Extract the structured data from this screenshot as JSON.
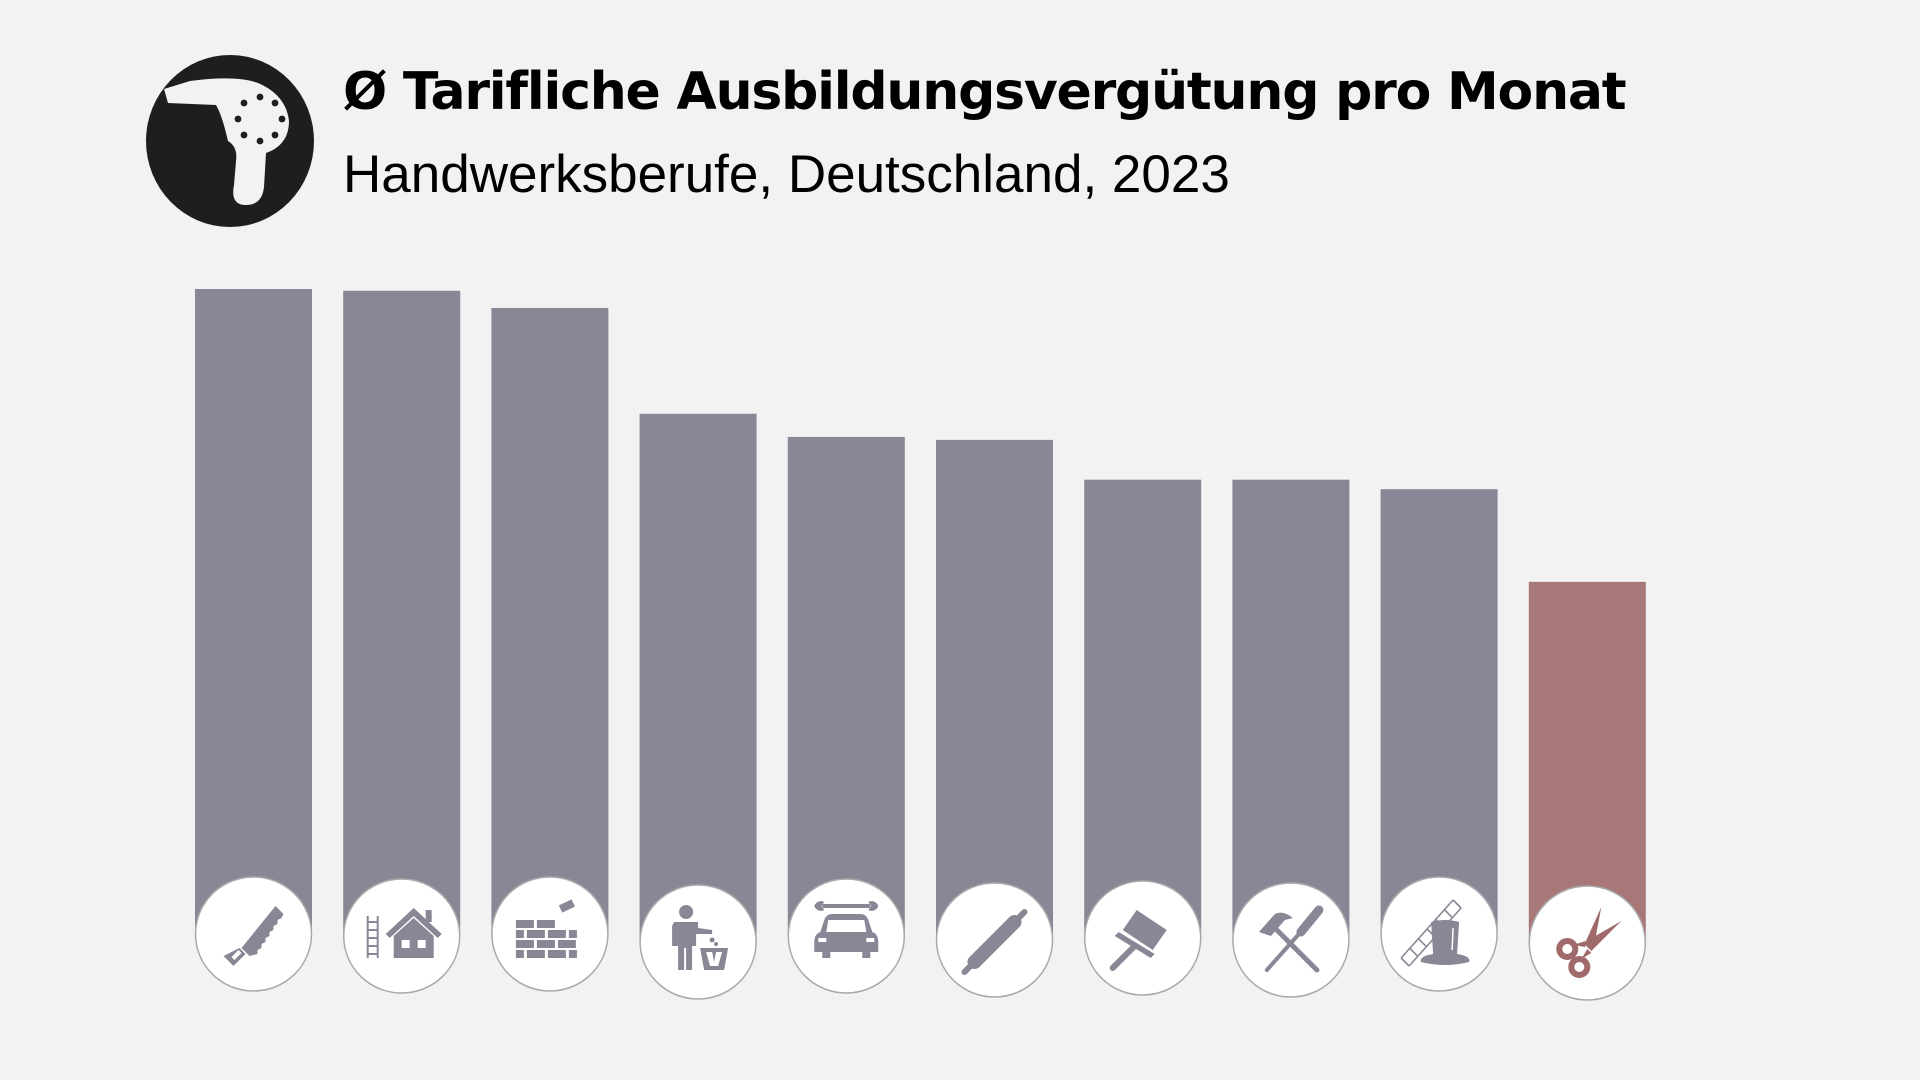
{
  "header": {
    "icon": "hair-dryer-icon",
    "title": "Ø Tarifliche Ausbildungsvergütung pro Monat",
    "subtitle": "Handwerksberufe, Deutschland, 2023"
  },
  "colors": {
    "background": "#f2f2f2",
    "bar_default": "#888796",
    "bar_highlight": "#a87878",
    "icon_default": "#888796",
    "icon_highlight": "#a06a6a",
    "header_icon": "#1e1e1e"
  },
  "chart_data": {
    "type": "bar",
    "title": "Ø Tarifliche Ausbildungsvergütung pro Monat",
    "subtitle": "Handwerksberufe, Deutschland, 2023",
    "xlabel": "",
    "ylabel": "",
    "unit": "EUR (estimated, no axis shown)",
    "ylim": [
      0,
      1200
    ],
    "grid": false,
    "legend": "none",
    "categories": [
      "saw-icon",
      "house-ladder-icon",
      "brick-wall-icon",
      "person-trash-icon",
      "car-wrench-icon",
      "rolling-pin-icon",
      "paint-brush-icon",
      "hammer-screwdriver-icon",
      "chimney-sweep-hat-ladder-icon",
      "scissors-icon"
    ],
    "values": [
      1180,
      1177,
      1148,
      970,
      931,
      926,
      859,
      859,
      843,
      687
    ],
    "highlight_index": 9
  }
}
